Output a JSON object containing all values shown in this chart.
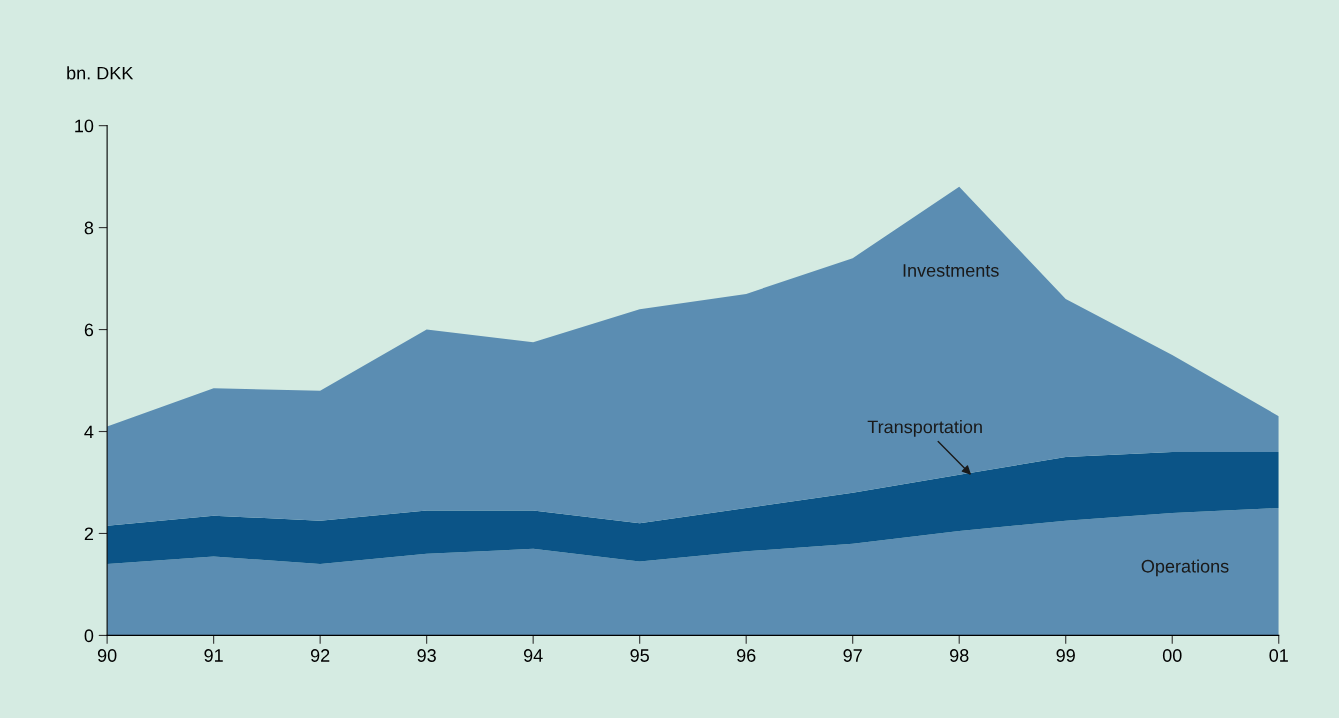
{
  "chart_data": {
    "type": "area",
    "stacked": true,
    "ylabel": "bn. DKK",
    "x": [
      1990,
      1991,
      1992,
      1993,
      1994,
      1995,
      1996,
      1997,
      1998,
      1999,
      2000,
      2001
    ],
    "series": [
      {
        "name": "Operations",
        "color": "#5b8db2",
        "values": [
          1.4,
          1.55,
          1.4,
          1.6,
          1.7,
          1.45,
          1.65,
          1.8,
          2.05,
          2.25,
          2.4,
          2.5
        ]
      },
      {
        "name": "Transportation",
        "color": "#0b5487",
        "values": [
          0.75,
          0.8,
          0.85,
          0.85,
          0.75,
          0.75,
          0.85,
          1.0,
          1.1,
          1.25,
          1.2,
          1.1
        ]
      },
      {
        "name": "Investments",
        "color": "#5b8db2",
        "values": [
          1.95,
          2.5,
          2.55,
          3.55,
          3.3,
          4.2,
          4.2,
          4.6,
          5.65,
          3.1,
          1.9,
          0.7
        ]
      }
    ],
    "xlim": [
      1990,
      2001
    ],
    "xticks": [
      {
        "value": 1990,
        "label": "90"
      },
      {
        "value": 1991,
        "label": "91"
      },
      {
        "value": 1992,
        "label": "92"
      },
      {
        "value": 1993,
        "label": "93"
      },
      {
        "value": 1994,
        "label": "94"
      },
      {
        "value": 1995,
        "label": "95"
      },
      {
        "value": 1996,
        "label": "96"
      },
      {
        "value": 1997,
        "label": "97"
      },
      {
        "value": 1998,
        "label": "98"
      },
      {
        "value": 1999,
        "label": "99"
      },
      {
        "value": 2000,
        "label": "00"
      },
      {
        "value": 2001,
        "label": "01"
      }
    ],
    "ylim": [
      0,
      10
    ],
    "yticks": [
      0,
      2,
      4,
      6,
      8,
      10
    ],
    "grid": false,
    "legend": false
  }
}
